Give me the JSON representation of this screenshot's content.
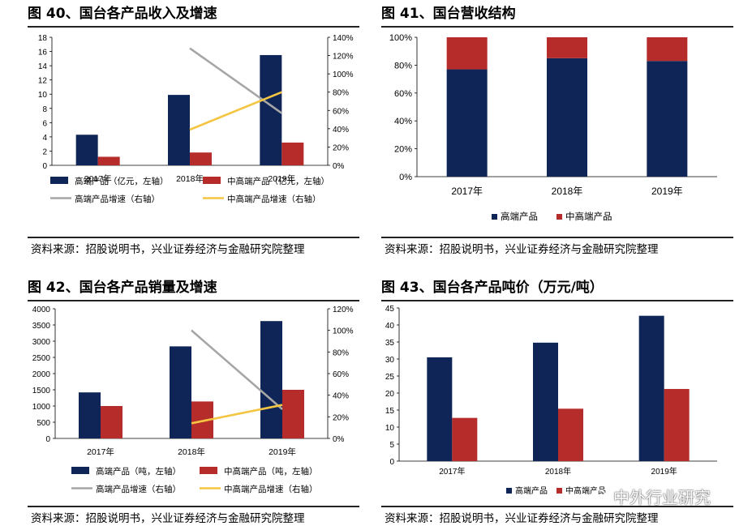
{
  "source_text": "资料来源：招股说明书，兴业证券经济与金融研究院整理",
  "watermark": {
    "text": "中外行业研究",
    "icon": "wechat-icon"
  },
  "colors": {
    "dark_blue": "#0F2557",
    "red": "#B52C2A",
    "gray": "#A6A6A6",
    "yellow": "#F4C542"
  },
  "panels": {
    "p40": {
      "title": "图 40、国台各产品收入及增速"
    },
    "p41": {
      "title": "图 41、国台营收结构"
    },
    "p42": {
      "title": "图 42、国台各产品销量及增速"
    },
    "p43": {
      "title": "图 43、国台各产品吨价（万元/吨）"
    }
  },
  "chart_data": [
    {
      "id": "fig40",
      "type": "bar",
      "title": "图 40、国台各产品收入及增速",
      "categories": [
        "2017年",
        "2018年",
        "2019年"
      ],
      "ylim": [
        0,
        18
      ],
      "yticks": [
        "0",
        "2",
        "4",
        "6",
        "8",
        "10",
        "12",
        "14",
        "16",
        "18"
      ],
      "y2lim": [
        0,
        140
      ],
      "y2ticks": [
        "0%",
        "20%",
        "40%",
        "60%",
        "80%",
        "100%",
        "120%",
        "140%"
      ],
      "series": [
        {
          "name": "高端产品（亿元，左轴）",
          "kind": "bar",
          "axis": "left",
          "color": "#0F2557",
          "values": [
            4.3,
            9.9,
            15.5
          ]
        },
        {
          "name": "中高端产品（亿元，左轴）",
          "kind": "bar",
          "axis": "left",
          "color": "#B52C2A",
          "values": [
            1.2,
            1.8,
            3.2
          ]
        },
        {
          "name": "高端产品增速（右轴）",
          "kind": "line",
          "axis": "right",
          "color": "#A6A6A6",
          "values": [
            null,
            128,
            57
          ]
        },
        {
          "name": "中高端产品增速（右轴）",
          "kind": "line",
          "axis": "right",
          "color": "#F4C542",
          "values": [
            null,
            39,
            80
          ]
        }
      ]
    },
    {
      "id": "fig41",
      "type": "bar",
      "stacked": true,
      "title": "图 41、国台营收结构",
      "categories": [
        "2017年",
        "2018年",
        "2019年"
      ],
      "ylim": [
        0,
        100
      ],
      "yticks": [
        "0%",
        "20%",
        "40%",
        "60%",
        "80%",
        "100%"
      ],
      "series": [
        {
          "name": "高端产品",
          "color": "#0F2557",
          "values": [
            77,
            85,
            83
          ]
        },
        {
          "name": "中高端产品",
          "color": "#B52C2A",
          "values": [
            23,
            15,
            17
          ]
        }
      ]
    },
    {
      "id": "fig42",
      "type": "bar",
      "title": "图 42、国台各产品销量及增速",
      "categories": [
        "2017年",
        "2018年",
        "2019年"
      ],
      "ylim": [
        0,
        4000
      ],
      "yticks": [
        "0",
        "500",
        "1000",
        "1500",
        "2000",
        "2500",
        "3000",
        "3500",
        "4000"
      ],
      "y2lim": [
        0,
        120
      ],
      "y2ticks": [
        "0%",
        "20%",
        "40%",
        "60%",
        "80%",
        "100%",
        "120%"
      ],
      "series": [
        {
          "name": "高端产品（吨，左轴）",
          "kind": "bar",
          "axis": "left",
          "color": "#0F2557",
          "values": [
            1420,
            2840,
            3620
          ]
        },
        {
          "name": "中高端产品（吨，左轴）",
          "kind": "bar",
          "axis": "left",
          "color": "#B52C2A",
          "values": [
            1000,
            1140,
            1500
          ]
        },
        {
          "name": "高端产品增速（右轴）",
          "kind": "line",
          "axis": "right",
          "color": "#A6A6A6",
          "values": [
            null,
            100,
            27
          ]
        },
        {
          "name": "中高端产品增速（右轴）",
          "kind": "line",
          "axis": "right",
          "color": "#F4C542",
          "values": [
            null,
            14,
            31
          ]
        }
      ]
    },
    {
      "id": "fig43",
      "type": "bar",
      "title": "图 43、国台各产品吨价（万元/吨）",
      "categories": [
        "2017年",
        "2018年",
        "2019年"
      ],
      "ylim": [
        0,
        45
      ],
      "yticks": [
        "0",
        "5",
        "10",
        "15",
        "20",
        "25",
        "30",
        "35",
        "40",
        "45"
      ],
      "series": [
        {
          "name": "高端产品",
          "color": "#0F2557",
          "values": [
            30.5,
            34.8,
            42.7
          ]
        },
        {
          "name": "中高端产品",
          "color": "#B52C2A",
          "values": [
            12.7,
            15.4,
            21.2
          ]
        }
      ]
    }
  ]
}
